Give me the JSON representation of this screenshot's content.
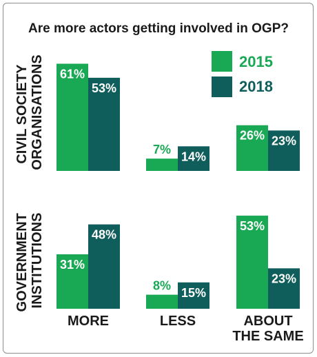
{
  "chart_data": {
    "type": "bar",
    "title": "Are more actors getting involved in OGP?",
    "categories": [
      "MORE",
      "LESS",
      "ABOUT\nTHE SAME"
    ],
    "category_lines": [
      [
        "MORE"
      ],
      [
        "LESS"
      ],
      [
        "ABOUT",
        "THE SAME"
      ]
    ],
    "legend": [
      "2015",
      "2018"
    ],
    "legend_placement": "top-right",
    "colors": {
      "2015": "#19a955",
      "2018": "#0f5e5b",
      "label_on_bar": "#ffffff"
    },
    "grid": false,
    "ylim": [
      0,
      70
    ],
    "panels": [
      {
        "name": "CIVIL SOCIETY ORGANISATIONS",
        "label_lines": [
          "CIVIL SOCIETY",
          "ORGANISATIONS"
        ],
        "series": [
          {
            "name": "2015",
            "values": [
              61,
              7,
              26
            ],
            "labels": [
              "61%",
              "7%",
              "26%"
            ]
          },
          {
            "name": "2018",
            "values": [
              53,
              14,
              23
            ],
            "labels": [
              "53%",
              "14%",
              "23%"
            ]
          }
        ]
      },
      {
        "name": "GOVERNMENT INSTITUTIONS",
        "label_lines": [
          "GOVERNMENT",
          "INSTITUTIONS"
        ],
        "series": [
          {
            "name": "2015",
            "values": [
              31,
              8,
              53
            ],
            "labels": [
              "31%",
              "8%",
              "53%"
            ]
          },
          {
            "name": "2018",
            "values": [
              48,
              15,
              23
            ],
            "labels": [
              "48%",
              "15%",
              "23%"
            ]
          }
        ]
      }
    ]
  }
}
